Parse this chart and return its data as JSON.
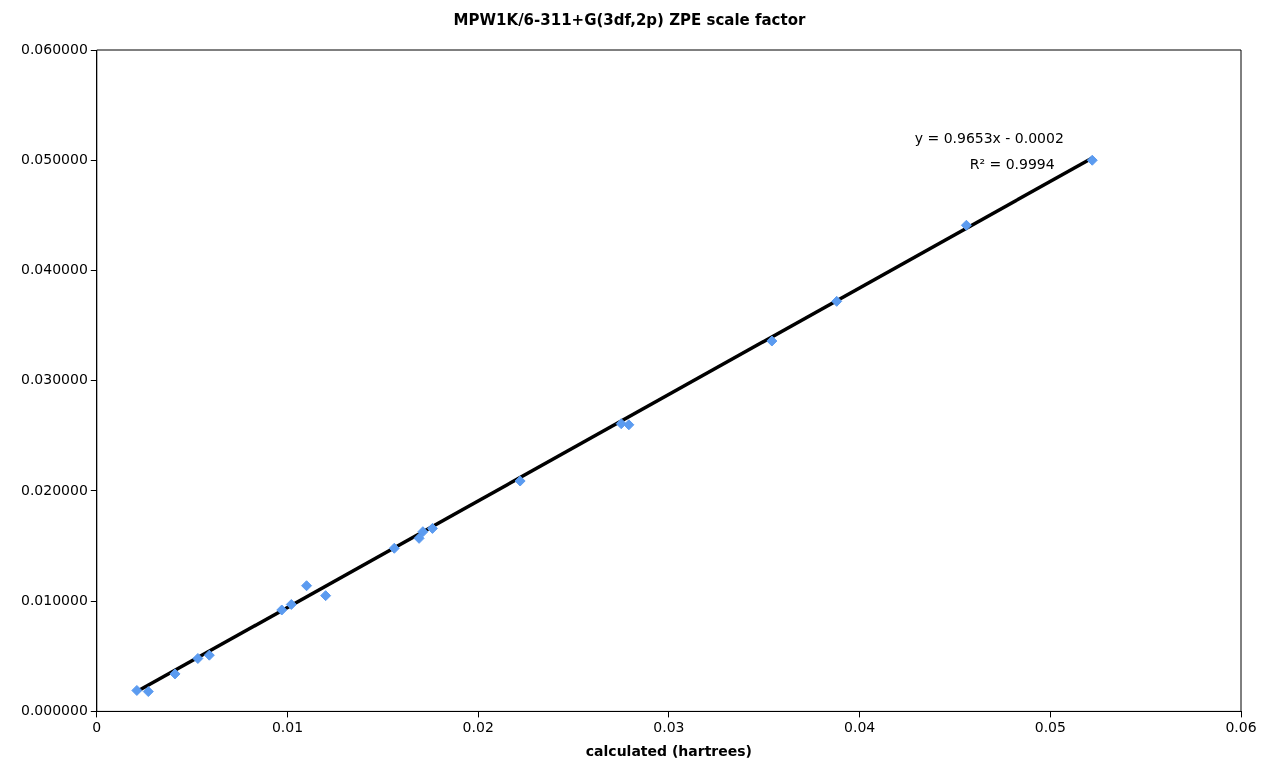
{
  "chart_data": {
    "type": "scatter",
    "title": "MPW1K/6-311+G(3df,2p) ZPE scale factor",
    "xlabel": "calculated (hartrees)",
    "xlim": [
      0,
      0.06
    ],
    "xticks": [
      0,
      0.01,
      0.02,
      0.03,
      0.04,
      0.05,
      0.06
    ],
    "ylim": [
      0,
      0.06
    ],
    "yticks": [
      {
        "value": 0,
        "label": "0.000000"
      },
      {
        "value": 0.01,
        "label": "0.010000"
      },
      {
        "value": 0.02,
        "label": "0.020000"
      },
      {
        "value": 0.03,
        "label": "0.030000"
      },
      {
        "value": 0.04,
        "label": "0.040000"
      },
      {
        "value": 0.05,
        "label": "0.050000"
      },
      {
        "value": 0.06,
        "label": "0.060000"
      }
    ],
    "grid": false,
    "legend": false,
    "marker": "diamond",
    "series": [
      {
        "type": "scatter",
        "color": "#5b9bf0",
        "x": [
          0.0021,
          0.0027,
          0.0041,
          0.0053,
          0.0059,
          0.0097,
          0.0102,
          0.011,
          0.012,
          0.0156,
          0.0169,
          0.0171,
          0.0176,
          0.0222,
          0.0275,
          0.0279,
          0.0354,
          0.0388,
          0.0456,
          0.0522
        ],
        "values": [
          0.0019,
          0.0018,
          0.0034,
          0.0048,
          0.0051,
          0.0092,
          0.0097,
          0.0114,
          0.0105,
          0.0148,
          0.0157,
          0.0163,
          0.0166,
          0.0209,
          0.0261,
          0.026,
          0.0336,
          0.0372,
          0.0441,
          0.05
        ]
      },
      {
        "type": "line",
        "color": "#000000",
        "marker": "none",
        "x": [
          0.0021,
          0.0522
        ],
        "values": [
          0.0018,
          0.0502
        ]
      }
    ],
    "annotations": [
      "y = 0.9653x - 0.0002",
      "R² = 0.9994"
    ]
  }
}
